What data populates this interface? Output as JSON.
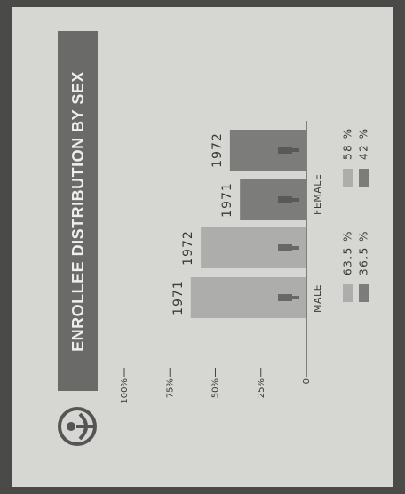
{
  "chart_data": {
    "type": "bar",
    "title": "ENROLLEE DISTRIBUTION BY SEX",
    "categories": [
      "1971",
      "1972"
    ],
    "series": [
      {
        "name": "MALE",
        "color": "#adadab",
        "values": [
          63.5,
          58
        ],
        "value_labels": [
          "63.5 %",
          "58 %"
        ]
      },
      {
        "name": "FEMALE",
        "color": "#7c7c7a",
        "values": [
          36.5,
          42
        ],
        "value_labels": [
          "36.5 %",
          "42 %"
        ]
      }
    ],
    "ylim": [
      0,
      100
    ],
    "yticks": [
      0,
      {
        "value": 25,
        "label": "25%"
      },
      {
        "value": 50,
        "label": "50%"
      },
      {
        "value": 75,
        "label": "75%"
      },
      {
        "value": 100,
        "label": "100%"
      }
    ]
  }
}
